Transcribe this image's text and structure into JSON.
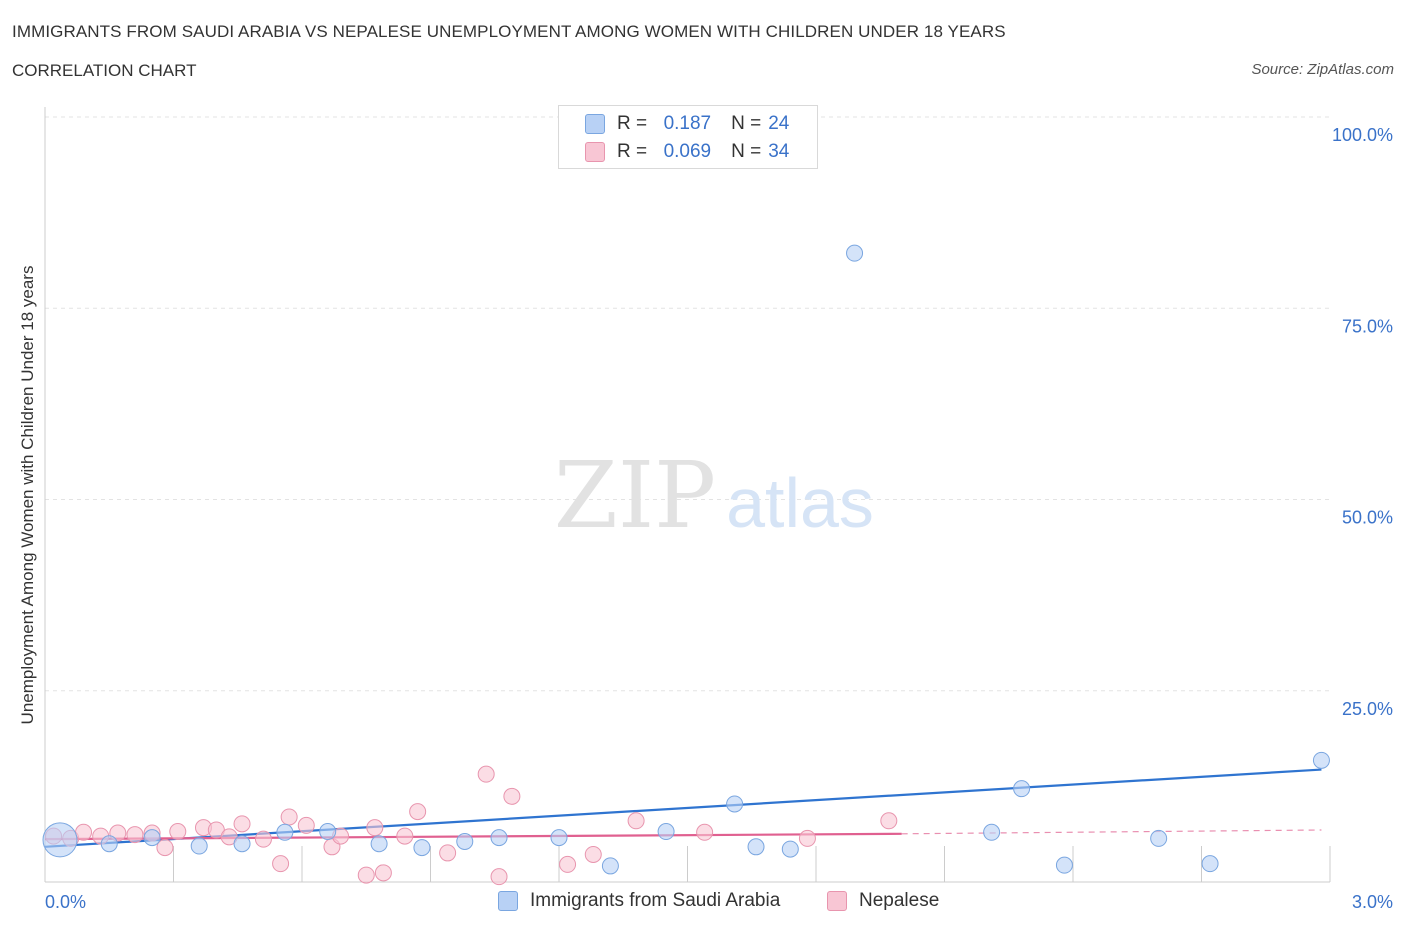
{
  "header": {
    "title": "IMMIGRANTS FROM SAUDI ARABIA VS NEPALESE UNEMPLOYMENT AMONG WOMEN WITH CHILDREN UNDER 18 YEARS",
    "subtitle": "CORRELATION CHART",
    "source": "Source: ZipAtlas.com"
  },
  "watermark": {
    "part1": "ZIP",
    "part2": "atlas"
  },
  "legend": {
    "r_label": "R =",
    "n_label": "N =",
    "series": [
      {
        "r": "0.187",
        "n": "24"
      },
      {
        "r": "0.069",
        "n": "34"
      }
    ]
  },
  "colors": {
    "blue_fill": "#b8d1f5",
    "blue_stroke": "#7aa6e0",
    "blue_line": "#2f74d0",
    "pink_fill": "#f8c6d4",
    "pink_stroke": "#e895ae",
    "pink_line": "#e06090",
    "tick_label": "#3a72c9",
    "grid": "#e3e3e3"
  },
  "chart_data": {
    "type": "scatter",
    "title": "IMMIGRANTS FROM SAUDI ARABIA VS NEPALESE UNEMPLOYMENT AMONG WOMEN WITH CHILDREN UNDER 18 YEARS",
    "xlabel": "",
    "ylabel": "Unemployment Among Women with Children Under 18 years",
    "xlim": [
      0,
      3.0
    ],
    "ylim": [
      0,
      100
    ],
    "x_tick_labels": [
      "0.0%",
      "3.0%"
    ],
    "y_ticks": [
      25,
      50,
      75,
      100
    ],
    "y_tick_labels": [
      "25.0%",
      "50.0%",
      "75.0%",
      "100.0%"
    ],
    "grid": true,
    "series": [
      {
        "name": "Immigrants from Saudi Arabia",
        "color": "blue",
        "points": [
          {
            "x": 0.035,
            "y": 5.5,
            "big": true
          },
          {
            "x": 0.15,
            "y": 5.0
          },
          {
            "x": 0.25,
            "y": 5.8
          },
          {
            "x": 0.36,
            "y": 4.7
          },
          {
            "x": 0.46,
            "y": 5.0
          },
          {
            "x": 0.56,
            "y": 6.5
          },
          {
            "x": 0.66,
            "y": 6.6
          },
          {
            "x": 0.78,
            "y": 5.0
          },
          {
            "x": 0.88,
            "y": 4.5
          },
          {
            "x": 0.98,
            "y": 5.3
          },
          {
            "x": 1.06,
            "y": 5.8
          },
          {
            "x": 1.2,
            "y": 5.8
          },
          {
            "x": 1.32,
            "y": 2.1
          },
          {
            "x": 1.45,
            "y": 6.6
          },
          {
            "x": 1.61,
            "y": 10.2
          },
          {
            "x": 1.66,
            "y": 4.6
          },
          {
            "x": 1.74,
            "y": 4.3
          },
          {
            "x": 1.89,
            "y": 82.2
          },
          {
            "x": 2.21,
            "y": 6.5
          },
          {
            "x": 2.28,
            "y": 12.2
          },
          {
            "x": 2.38,
            "y": 2.2
          },
          {
            "x": 2.6,
            "y": 5.7
          },
          {
            "x": 2.72,
            "y": 2.4
          },
          {
            "x": 2.98,
            "y": 15.9
          }
        ],
        "trend": {
          "x0": 0.0,
          "y0": 4.6,
          "x1": 2.98,
          "y1": 14.7
        }
      },
      {
        "name": "Nepalese",
        "color": "pink",
        "points": [
          {
            "x": 0.02,
            "y": 6.0
          },
          {
            "x": 0.06,
            "y": 5.7
          },
          {
            "x": 0.09,
            "y": 6.5
          },
          {
            "x": 0.13,
            "y": 6.0
          },
          {
            "x": 0.17,
            "y": 6.4
          },
          {
            "x": 0.21,
            "y": 6.2
          },
          {
            "x": 0.25,
            "y": 6.4
          },
          {
            "x": 0.28,
            "y": 4.5
          },
          {
            "x": 0.31,
            "y": 6.6
          },
          {
            "x": 0.37,
            "y": 7.1
          },
          {
            "x": 0.4,
            "y": 6.8
          },
          {
            "x": 0.43,
            "y": 5.9
          },
          {
            "x": 0.46,
            "y": 7.6
          },
          {
            "x": 0.51,
            "y": 5.6
          },
          {
            "x": 0.55,
            "y": 2.4
          },
          {
            "x": 0.57,
            "y": 8.5
          },
          {
            "x": 0.61,
            "y": 7.4
          },
          {
            "x": 0.67,
            "y": 4.6
          },
          {
            "x": 0.69,
            "y": 6.0
          },
          {
            "x": 0.75,
            "y": 0.9
          },
          {
            "x": 0.77,
            "y": 7.1
          },
          {
            "x": 0.79,
            "y": 1.2
          },
          {
            "x": 0.84,
            "y": 6.0
          },
          {
            "x": 0.87,
            "y": 9.2
          },
          {
            "x": 0.94,
            "y": 3.8
          },
          {
            "x": 1.03,
            "y": 14.1
          },
          {
            "x": 1.06,
            "y": 0.7
          },
          {
            "x": 1.09,
            "y": 11.2
          },
          {
            "x": 1.22,
            "y": 2.3
          },
          {
            "x": 1.28,
            "y": 3.6
          },
          {
            "x": 1.38,
            "y": 8.0
          },
          {
            "x": 1.54,
            "y": 6.5
          },
          {
            "x": 1.78,
            "y": 5.7
          },
          {
            "x": 1.97,
            "y": 8.0
          }
        ],
        "trend": {
          "x0": 0.0,
          "y0": 5.6,
          "x1": 2.0,
          "y1": 6.3
        },
        "trend_dashed": {
          "x0": 2.0,
          "y0": 6.3,
          "x1": 2.98,
          "y1": 6.8
        }
      }
    ]
  }
}
